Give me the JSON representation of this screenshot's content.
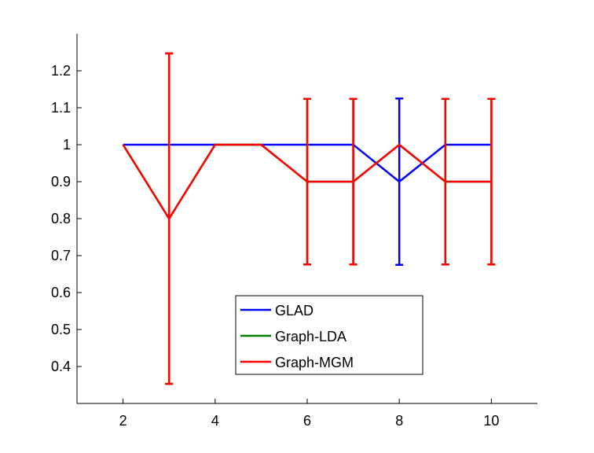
{
  "chart_data": {
    "type": "line",
    "title": "",
    "xlabel": "",
    "ylabel": "",
    "xlim": [
      1,
      11
    ],
    "ylim": [
      0.3,
      1.3
    ],
    "xticks": [
      2,
      4,
      6,
      8,
      10
    ],
    "yticks": [
      0.4,
      0.5,
      0.6,
      0.7,
      0.8,
      0.9,
      1,
      1.1,
      1.2
    ],
    "xtick_labels": [
      "2",
      "4",
      "6",
      "8",
      "10"
    ],
    "ytick_labels": [
      "0.4",
      "0.5",
      "0.6",
      "0.7",
      "0.8",
      "0.9",
      "1",
      "1.1",
      "1.2"
    ],
    "grid": false,
    "legend_position": "bottom-center",
    "series": [
      {
        "name": "GLAD",
        "color": "#0000ff",
        "x": [
          2,
          3,
          4,
          5,
          6,
          7,
          8,
          9,
          10
        ],
        "y": [
          1,
          1,
          1,
          1,
          1,
          1,
          0.9,
          1,
          1
        ],
        "err": [
          0,
          0,
          0,
          0,
          0,
          0,
          0.225,
          0,
          0
        ]
      },
      {
        "name": "Graph-LDA",
        "color": "#008000",
        "x": [
          2,
          3,
          4,
          5,
          6,
          7,
          8,
          9,
          10
        ],
        "y": [
          1,
          0.8,
          1,
          1,
          0.9,
          0.9,
          1,
          0.9,
          0.9
        ],
        "err": [
          0,
          0.447,
          0,
          0,
          0.224,
          0.224,
          0,
          0.224,
          0.224
        ]
      },
      {
        "name": "Graph-MGM",
        "color": "#ff0000",
        "x": [
          2,
          3,
          4,
          5,
          6,
          7,
          8,
          9,
          10
        ],
        "y": [
          1,
          0.8,
          1,
          1,
          0.9,
          0.9,
          1,
          0.9,
          0.9
        ],
        "err": [
          0,
          0.447,
          0,
          0,
          0.224,
          0.224,
          0,
          0.224,
          0.224
        ]
      }
    ]
  }
}
